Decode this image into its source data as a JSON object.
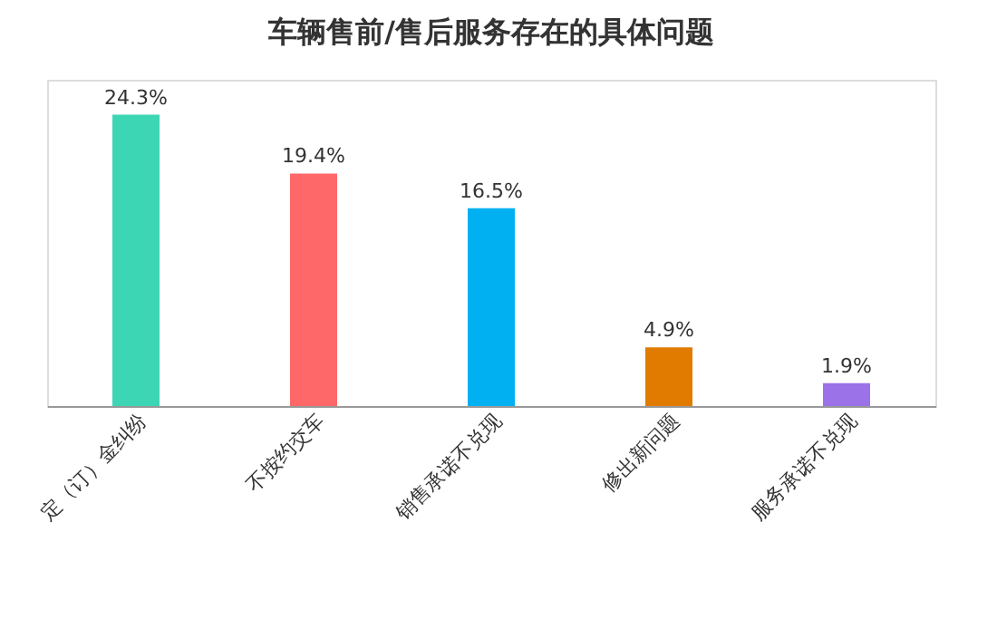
{
  "chart_data": {
    "type": "bar",
    "title": "车辆售前/售后服务存在的具体问题",
    "categories": [
      "定（订）金纠纷",
      "不按约交车",
      "销售承诺不兑现",
      "修出新问题",
      "服务承诺不兑现"
    ],
    "values": [
      24.3,
      19.4,
      16.5,
      4.9,
      1.9
    ],
    "colors": [
      "#3dd6b5",
      "#ff6868",
      "#00b0f0",
      "#e07b00",
      "#9b72e8"
    ],
    "value_labels": [
      "24.3%",
      "19.4%",
      "16.5%",
      "4.9%",
      "1.9%"
    ],
    "grid": false,
    "legend": false
  }
}
